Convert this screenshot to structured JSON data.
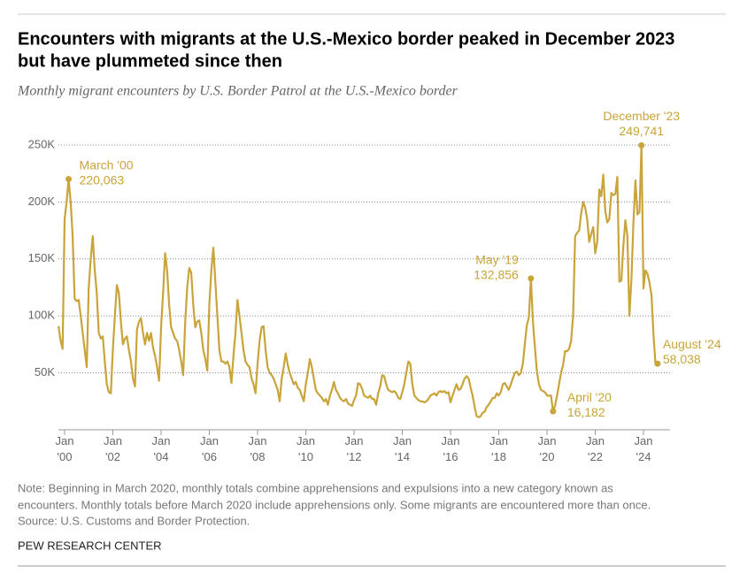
{
  "chart_data": {
    "type": "line",
    "title": [
      "Encounters with migrants at the U.S.-Mexico border peaked in December 2023",
      "but have plummeted since then"
    ],
    "subtitle": "Monthly migrant encounters by U.S. Border Patrol at the U.S.-Mexico border",
    "notes": [
      "Note: Beginning in March 2020, monthly totals combine apprehensions and expulsions into a new category known as",
      "encounters. Monthly totals before March 2020 include apprehensions only. Some migrants are encountered more than once.",
      "Source: U.S. Customs and Border Protection."
    ],
    "source": "PEW RESEARCH CENTER",
    "grid": true,
    "x": [
      "1999-10",
      "1999-11",
      "1999-12",
      "2000-01",
      "2000-02",
      "2000-03",
      "2000-04",
      "2000-05",
      "2000-06",
      "2000-07",
      "2000-08",
      "2000-09",
      "2000-10",
      "2000-11",
      "2000-12",
      "2001-01",
      "2001-02",
      "2001-03",
      "2001-04",
      "2001-05",
      "2001-06",
      "2001-07",
      "2001-08",
      "2001-09",
      "2001-10",
      "2001-11",
      "2001-12",
      "2002-01",
      "2002-02",
      "2002-03",
      "2002-04",
      "2002-05",
      "2002-06",
      "2002-07",
      "2002-08",
      "2002-09",
      "2002-10",
      "2002-11",
      "2002-12",
      "2003-01",
      "2003-02",
      "2003-03",
      "2003-04",
      "2003-05",
      "2003-06",
      "2003-07",
      "2003-08",
      "2003-09",
      "2003-10",
      "2003-11",
      "2003-12",
      "2004-01",
      "2004-02",
      "2004-03",
      "2004-04",
      "2004-05",
      "2004-06",
      "2004-07",
      "2004-08",
      "2004-09",
      "2004-10",
      "2004-11",
      "2004-12",
      "2005-01",
      "2005-02",
      "2005-03",
      "2005-04",
      "2005-05",
      "2005-06",
      "2005-07",
      "2005-08",
      "2005-09",
      "2005-10",
      "2005-11",
      "2005-12",
      "2006-01",
      "2006-02",
      "2006-03",
      "2006-04",
      "2006-05",
      "2006-06",
      "2006-07",
      "2006-08",
      "2006-09",
      "2006-10",
      "2006-11",
      "2006-12",
      "2007-01",
      "2007-02",
      "2007-03",
      "2007-04",
      "2007-05",
      "2007-06",
      "2007-07",
      "2007-08",
      "2007-09",
      "2007-10",
      "2007-11",
      "2007-12",
      "2008-01",
      "2008-02",
      "2008-03",
      "2008-04",
      "2008-05",
      "2008-06",
      "2008-07",
      "2008-08",
      "2008-09",
      "2008-10",
      "2008-11",
      "2008-12",
      "2009-01",
      "2009-02",
      "2009-03",
      "2009-04",
      "2009-05",
      "2009-06",
      "2009-07",
      "2009-08",
      "2009-09",
      "2009-10",
      "2009-11",
      "2009-12",
      "2010-01",
      "2010-02",
      "2010-03",
      "2010-04",
      "2010-05",
      "2010-06",
      "2010-07",
      "2010-08",
      "2010-09",
      "2010-10",
      "2010-11",
      "2010-12",
      "2011-01",
      "2011-02",
      "2011-03",
      "2011-04",
      "2011-05",
      "2011-06",
      "2011-07",
      "2011-08",
      "2011-09",
      "2011-10",
      "2011-11",
      "2011-12",
      "2012-01",
      "2012-02",
      "2012-03",
      "2012-04",
      "2012-05",
      "2012-06",
      "2012-07",
      "2012-08",
      "2012-09",
      "2012-10",
      "2012-11",
      "2012-12",
      "2013-01",
      "2013-02",
      "2013-03",
      "2013-04",
      "2013-05",
      "2013-06",
      "2013-07",
      "2013-08",
      "2013-09",
      "2013-10",
      "2013-11",
      "2013-12",
      "2014-01",
      "2014-02",
      "2014-03",
      "2014-04",
      "2014-05",
      "2014-06",
      "2014-07",
      "2014-08",
      "2014-09",
      "2014-10",
      "2014-11",
      "2014-12",
      "2015-01",
      "2015-02",
      "2015-03",
      "2015-04",
      "2015-05",
      "2015-06",
      "2015-07",
      "2015-08",
      "2015-09",
      "2015-10",
      "2015-11",
      "2015-12",
      "2016-01",
      "2016-02",
      "2016-03",
      "2016-04",
      "2016-05",
      "2016-06",
      "2016-07",
      "2016-08",
      "2016-09",
      "2016-10",
      "2016-11",
      "2016-12",
      "2017-01",
      "2017-02",
      "2017-03",
      "2017-04",
      "2017-05",
      "2017-06",
      "2017-07",
      "2017-08",
      "2017-09",
      "2017-10",
      "2017-11",
      "2017-12",
      "2018-01",
      "2018-02",
      "2018-03",
      "2018-04",
      "2018-05",
      "2018-06",
      "2018-07",
      "2018-08",
      "2018-09",
      "2018-10",
      "2018-11",
      "2018-12",
      "2019-01",
      "2019-02",
      "2019-03",
      "2019-04",
      "2019-05",
      "2019-06",
      "2019-07",
      "2019-08",
      "2019-09",
      "2019-10",
      "2019-11",
      "2019-12",
      "2020-01",
      "2020-02",
      "2020-03",
      "2020-04",
      "2020-05",
      "2020-06",
      "2020-07",
      "2020-08",
      "2020-09",
      "2020-10",
      "2020-11",
      "2020-12",
      "2021-01",
      "2021-02",
      "2021-03",
      "2021-04",
      "2021-05",
      "2021-06",
      "2021-07",
      "2021-08",
      "2021-09",
      "2021-10",
      "2021-11",
      "2021-12",
      "2022-01",
      "2022-02",
      "2022-03",
      "2022-04",
      "2022-05",
      "2022-06",
      "2022-07",
      "2022-08",
      "2022-09",
      "2022-10",
      "2022-11",
      "2022-12",
      "2023-01",
      "2023-02",
      "2023-03",
      "2023-04",
      "2023-05",
      "2023-06",
      "2023-07",
      "2023-08",
      "2023-09",
      "2023-10",
      "2023-11",
      "2023-12",
      "2024-01",
      "2024-02",
      "2024-03",
      "2024-04",
      "2024-05",
      "2024-06",
      "2024-07",
      "2024-08"
    ],
    "series": [
      {
        "name": "Monthly migrant encounters",
        "color": "#c9a43a",
        "values": [
          91000,
          78000,
          71000,
          185000,
          200000,
          220063,
          200000,
          170000,
          115000,
          113000,
          114000,
          100000,
          85000,
          70000,
          55000,
          125000,
          150000,
          170000,
          140000,
          120000,
          85000,
          80000,
          82000,
          60000,
          40000,
          33000,
          32000,
          70000,
          100000,
          127000,
          120000,
          95000,
          75000,
          80000,
          82000,
          70000,
          60000,
          45000,
          38000,
          88000,
          95000,
          98000,
          85000,
          75000,
          85000,
          78000,
          85000,
          72000,
          65000,
          55000,
          43000,
          90000,
          120000,
          155000,
          140000,
          110000,
          90000,
          85000,
          80000,
          78000,
          70000,
          60000,
          48000,
          95000,
          125000,
          142000,
          138000,
          110000,
          90000,
          95000,
          96000,
          85000,
          70000,
          62000,
          52000,
          110000,
          140000,
          160000,
          130000,
          100000,
          70000,
          60000,
          60000,
          58000,
          60000,
          55000,
          41000,
          65000,
          85000,
          114000,
          100000,
          85000,
          70000,
          60000,
          57000,
          55000,
          45000,
          40000,
          32000,
          58000,
          78000,
          90000,
          91000,
          70000,
          55000,
          50000,
          48000,
          45000,
          40000,
          35000,
          25000,
          45000,
          55000,
          67000,
          57000,
          50000,
          45000,
          40000,
          42000,
          37000,
          35000,
          30000,
          25000,
          40000,
          50000,
          62000,
          55000,
          45000,
          35000,
          32000,
          30000,
          28000,
          25000,
          27000,
          22000,
          30000,
          35000,
          42000,
          35000,
          32000,
          28000,
          26000,
          25000,
          27000,
          23000,
          22000,
          21000,
          26000,
          30000,
          41000,
          40000,
          36000,
          30000,
          29000,
          28000,
          30000,
          27000,
          27000,
          22000,
          32000,
          38000,
          48000,
          47000,
          40000,
          35000,
          34000,
          33000,
          34000,
          32000,
          28000,
          27000,
          33000,
          40000,
          50000,
          60000,
          58000,
          40000,
          30000,
          28000,
          26000,
          25000,
          25000,
          24000,
          25000,
          27000,
          30000,
          31000,
          32000,
          30000,
          33000,
          34000,
          33000,
          34000,
          32000,
          33000,
          24000,
          30000,
          35000,
          40000,
          35000,
          36000,
          40000,
          45000,
          47000,
          45000,
          37000,
          30000,
          20000,
          12000,
          11000,
          12000,
          15000,
          16000,
          20000,
          22000,
          25000,
          28000,
          28000,
          32000,
          30000,
          33000,
          40000,
          41000,
          38000,
          35000,
          40000,
          45000,
          50000,
          51000,
          48000,
          50000,
          58000,
          76000,
          92000,
          99000,
          132856,
          95000,
          72000,
          51000,
          40000,
          35000,
          34000,
          33000,
          30000,
          30000,
          30000,
          16182,
          21000,
          30000,
          40000,
          50000,
          57000,
          69000,
          69000,
          71000,
          78000,
          100000,
          170000,
          173000,
          175000,
          190000,
          200000,
          195000,
          185000,
          165000,
          172000,
          178000,
          155000,
          165000,
          211000,
          205000,
          224000,
          192000,
          182000,
          185000,
          208000,
          206000,
          207000,
          222000,
          130000,
          131000,
          162000,
          184000,
          170000,
          100000,
          132000,
          182000,
          219000,
          189000,
          191000,
          249741,
          124000,
          140000,
          137000,
          129000,
          118000,
          83000,
          57000,
          58038
        ]
      }
    ],
    "ylim": [
      0,
      250000
    ],
    "yticks": [
      {
        "value": 50000,
        "label": "50K"
      },
      {
        "value": 100000,
        "label": "100K"
      },
      {
        "value": 150000,
        "label": "150K"
      },
      {
        "value": 200000,
        "label": "200K"
      },
      {
        "value": 250000,
        "label": "250K"
      }
    ],
    "xlim": [
      "1999-10",
      "2024-08"
    ],
    "xticks": [
      {
        "value": "2000-01",
        "label": "Jan '00"
      },
      {
        "value": "2002-01",
        "label": "Jan '02"
      },
      {
        "value": "2004-01",
        "label": "Jan '04"
      },
      {
        "value": "2006-01",
        "label": "Jan '06"
      },
      {
        "value": "2008-01",
        "label": "Jan '08"
      },
      {
        "value": "2010-01",
        "label": "Jan '10"
      },
      {
        "value": "2012-01",
        "label": "Jan '12"
      },
      {
        "value": "2014-01",
        "label": "Jan '14"
      },
      {
        "value": "2016-01",
        "label": "Jan '16"
      },
      {
        "value": "2018-01",
        "label": "Jan '18"
      },
      {
        "value": "2020-01",
        "label": "Jan '20"
      },
      {
        "value": "2022-01",
        "label": "Jan '22"
      },
      {
        "value": "2024-01",
        "label": "Jan '24"
      }
    ],
    "annotations": [
      {
        "x": "2000-03",
        "label": "March '00",
        "value_label": "220,063"
      },
      {
        "x": "2019-05",
        "label": "May '19",
        "value_label": "132,856"
      },
      {
        "x": "2020-04",
        "label": "April '20",
        "value_label": "16,182"
      },
      {
        "x": "2023-12",
        "label": "December '23",
        "value_label": "249,741"
      },
      {
        "x": "2024-08",
        "label": "August '24",
        "value_label": "58,038"
      }
    ]
  }
}
